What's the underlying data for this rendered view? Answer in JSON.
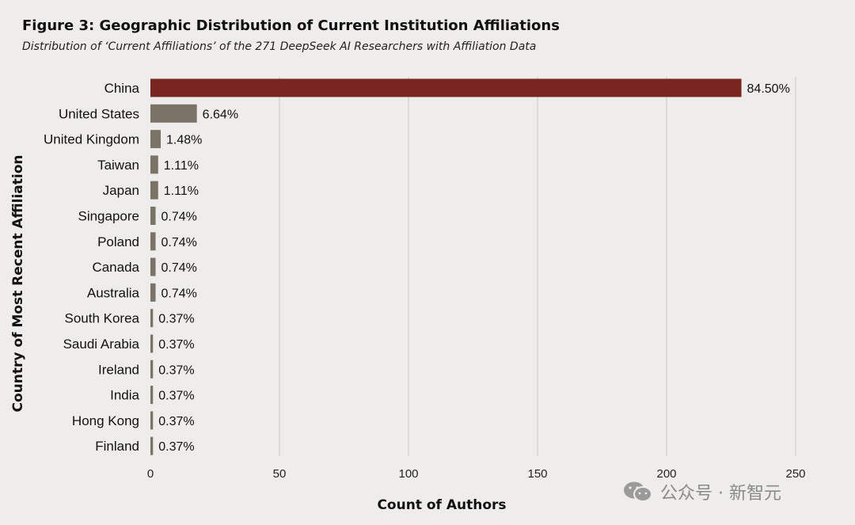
{
  "chart_data": {
    "type": "bar",
    "orientation": "horizontal",
    "title": "Figure 3: Geographic Distribution of Current Institution Affiliations",
    "subtitle": "Distribution of ‘Current Affiliations’ of the 271 DeepSeek AI Researchers with Affiliation Data",
    "xlabel": "Count of Authors",
    "ylabel": "Country of Most Recent Affiliation",
    "xlim": [
      0,
      250
    ],
    "xticks": [
      0,
      50,
      100,
      150,
      200,
      250
    ],
    "grid": true,
    "categories": [
      "China",
      "United States",
      "United Kingdom",
      "Taiwan",
      "Japan",
      "Singapore",
      "Poland",
      "Canada",
      "Australia",
      "South Korea",
      "Saudi Arabia",
      "Ireland",
      "India",
      "Hong Kong",
      "Finland"
    ],
    "values": [
      229,
      18,
      4,
      3,
      3,
      2,
      2,
      2,
      2,
      1,
      1,
      1,
      1,
      1,
      1
    ],
    "data_labels": [
      "84.50%",
      "6.64%",
      "1.48%",
      "1.11%",
      "1.11%",
      "0.74%",
      "0.74%",
      "0.74%",
      "0.74%",
      "0.37%",
      "0.37%",
      "0.37%",
      "0.37%",
      "0.37%",
      "0.37%"
    ],
    "colors": {
      "highlight": "#7a2620",
      "default": "#7b7366",
      "grid": "#c8c6c2"
    }
  },
  "watermark": {
    "icon": "wechat-icon",
    "text": "公众号 · 新智元"
  }
}
